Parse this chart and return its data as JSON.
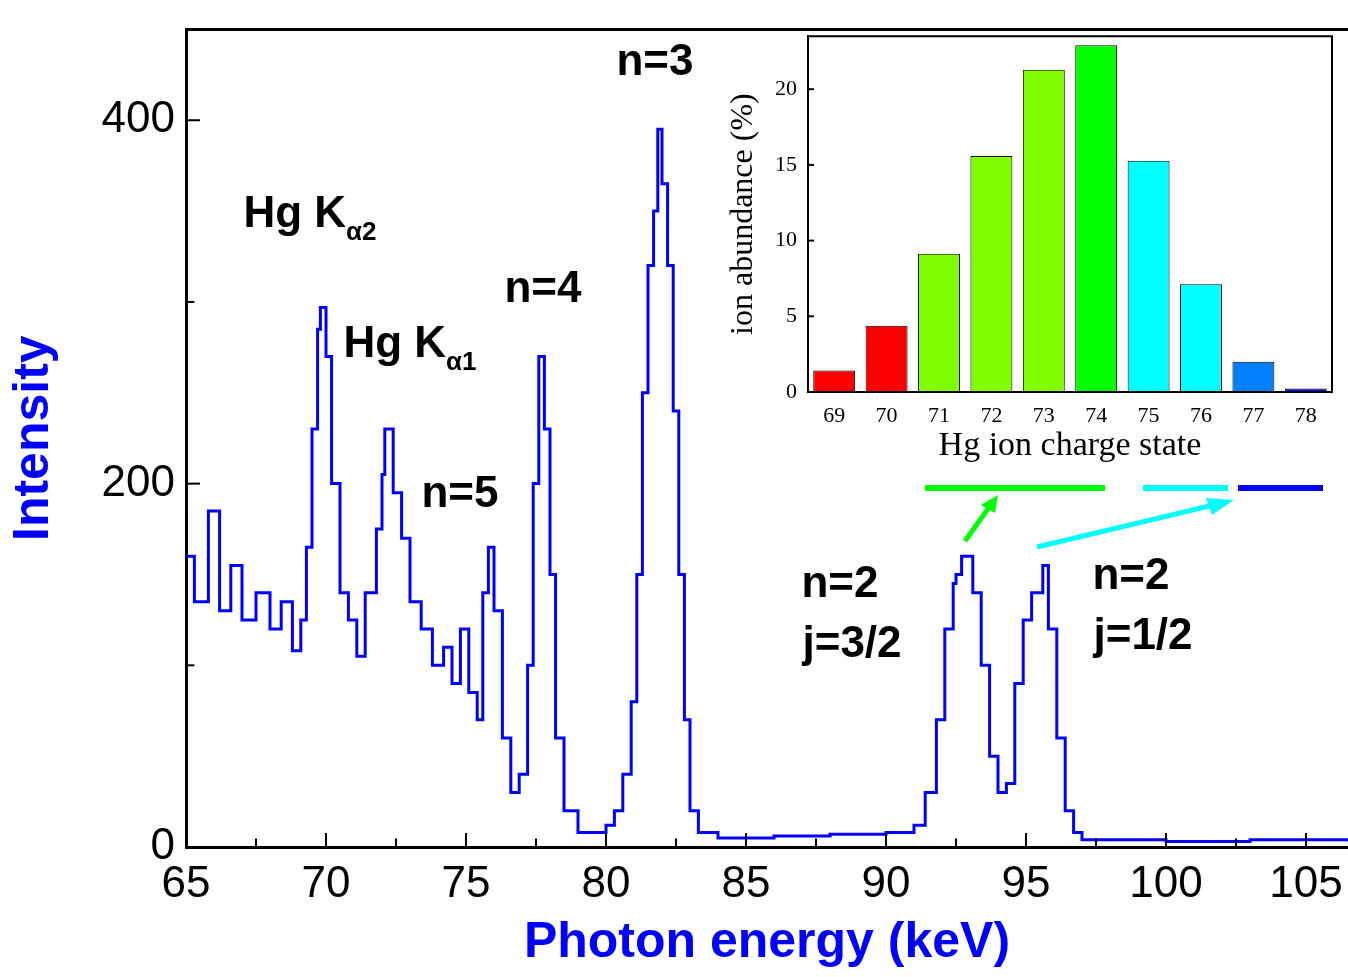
{
  "chart_data": [
    {
      "type": "step",
      "xlabel": "Photon energy (keV)",
      "ylabel": "Intensity",
      "color": "#0000ff",
      "x": [
        65,
        65.3,
        65.8,
        66.2,
        66.6,
        67,
        67.5,
        68,
        68.4,
        68.8,
        69.1,
        69.3,
        69.5,
        69.7,
        69.8,
        70,
        70.2,
        70.5,
        70.8,
        71.1,
        71.4,
        71.8,
        72,
        72.1,
        72.4,
        72.7,
        73,
        73.4,
        73.8,
        74.2,
        74.5,
        74.8,
        75.1,
        75.4,
        75.6,
        75.8,
        76,
        76.3,
        76.6,
        76.9,
        77.2,
        77.4,
        77.6,
        77.8,
        78,
        78.2,
        78.5,
        79,
        79.5,
        80,
        80.3,
        80.6,
        80.9,
        81.1,
        81.3,
        81.5,
        81.7,
        81.85,
        82,
        82.2,
        82.4,
        82.6,
        82.8,
        83,
        83.3,
        84,
        86,
        88,
        90,
        91,
        91.4,
        91.8,
        92.1,
        92.4,
        92.5,
        92.7,
        93.1,
        93.4,
        93.7,
        94,
        94.3,
        94.6,
        94.9,
        95.2,
        95.6,
        95.8,
        96.1,
        96.4,
        96.7,
        97,
        100,
        103,
        106.5
      ],
      "values": [
        160,
        135,
        185,
        130,
        155,
        125,
        140,
        120,
        135,
        108,
        125,
        165,
        230,
        285,
        297,
        270,
        200,
        140,
        125,
        105,
        140,
        175,
        205,
        230,
        195,
        170,
        135,
        120,
        100,
        110,
        90,
        120,
        85,
        70,
        140,
        165,
        130,
        60,
        30,
        40,
        100,
        200,
        270,
        230,
        150,
        60,
        20,
        8,
        8,
        12,
        20,
        40,
        80,
        150,
        250,
        320,
        350,
        395,
        365,
        320,
        240,
        150,
        70,
        20,
        8,
        5,
        6,
        7,
        8,
        12,
        30,
        70,
        120,
        145,
        150,
        160,
        140,
        100,
        50,
        30,
        35,
        90,
        125,
        140,
        155,
        120,
        60,
        20,
        8,
        4,
        3,
        4,
        3
      ],
      "xlim": [
        65,
        106.5
      ],
      "ylim": [
        0,
        450
      ],
      "xticks": [
        65,
        {
          "value": 67.5,
          "label": null
        },
        70,
        {
          "value": 72.5,
          "label": null
        },
        75,
        {
          "value": 77.5,
          "label": null
        },
        80,
        {
          "value": 82.5,
          "label": null
        },
        85,
        {
          "value": 87.5,
          "label": null
        },
        90,
        {
          "value": 92.5,
          "label": null
        },
        95,
        {
          "value": 97.5,
          "label": null
        },
        100,
        {
          "value": 102.5,
          "label": null
        },
        105
      ],
      "yticks": [
        0,
        {
          "value": 100,
          "label": null
        },
        200,
        {
          "value": 300,
          "label": null
        },
        400
      ],
      "annotations": [
        "Hg K$_{α2}$",
        "Hg K$_{α1}$",
        "n=5",
        "n=4",
        "n=3",
        "n=2",
        "j=3/2",
        "n=2",
        "j=1/2"
      ]
    },
    {
      "type": "bar",
      "xlabel": "Hg ion charge state",
      "ylabel": "ion abundance (%)",
      "categories": [
        "69",
        "70",
        "71",
        "72",
        "73",
        "74",
        "75",
        "76",
        "77",
        "78"
      ],
      "values": [
        1.42,
        4.37,
        9.13,
        15.58,
        21.29,
        22.9,
        15.27,
        7.12,
        1.99,
        0.23
      ],
      "colors": [
        "#ff0000",
        "#ff0000",
        "#80ff00",
        "#80ff00",
        "#80ff00",
        "#00ff00",
        "#00ffff",
        "#00ffff",
        "#0080ff",
        "#0000ff"
      ],
      "ylim": [
        0,
        23.5
      ],
      "yticks": [
        0,
        5,
        10,
        15,
        20
      ]
    }
  ]
}
